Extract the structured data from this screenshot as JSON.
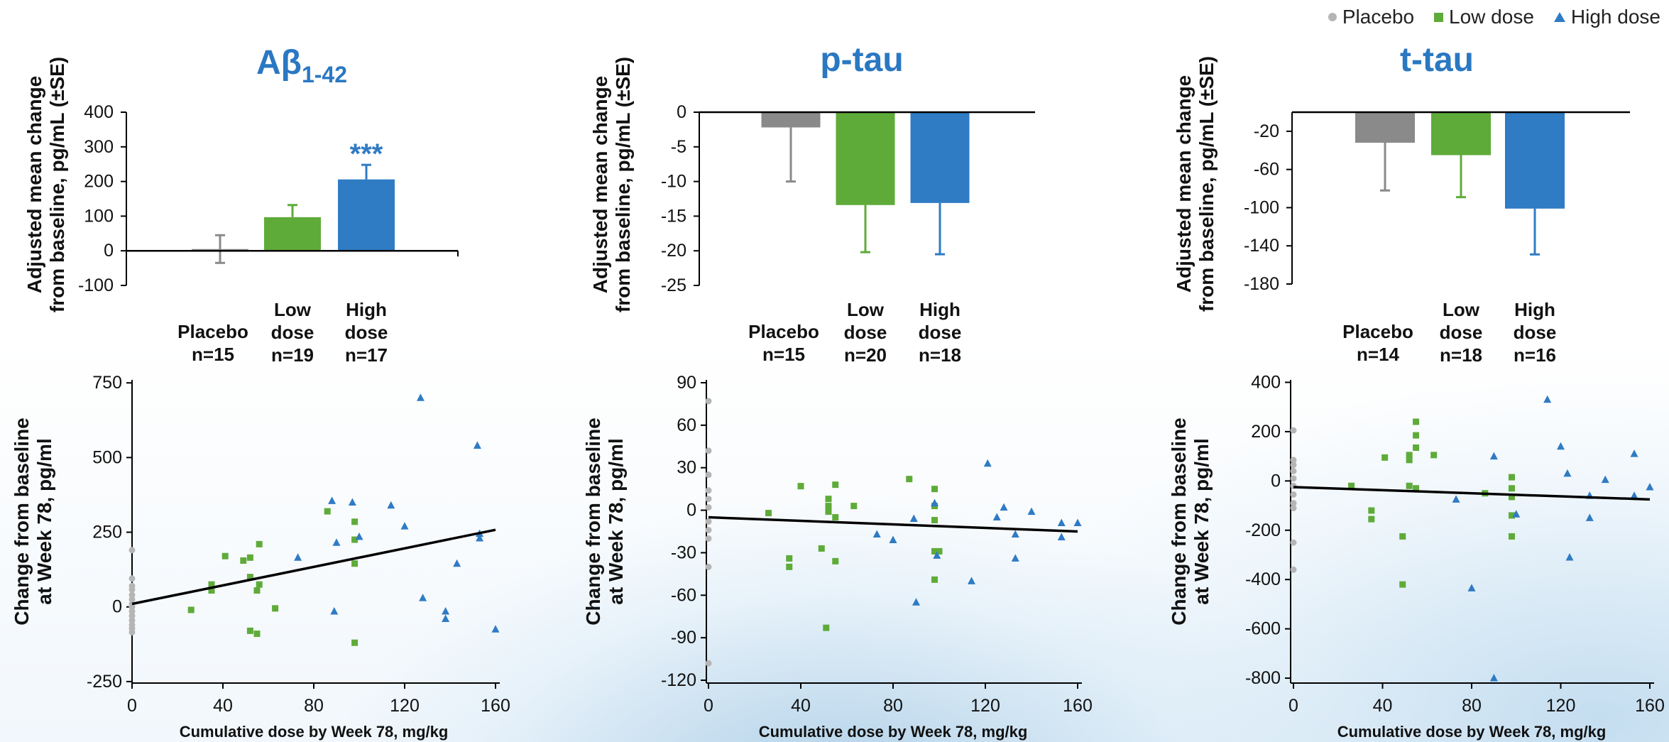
{
  "legend": {
    "items": [
      {
        "label": "Placebo",
        "color": "#b5b5b5",
        "shape": "circle"
      },
      {
        "label": "Low dose",
        "color": "#5fab3a",
        "shape": "square"
      },
      {
        "label": "High dose",
        "color": "#2f7bc4",
        "shape": "triangle"
      }
    ]
  },
  "colors": {
    "placebo": "#8a8a8a",
    "placebo_point": "#b5b5b5",
    "low": "#5fab3a",
    "high": "#2f7bc4",
    "title": "#2a78c2"
  },
  "chart_data": [
    {
      "id": "abeta-bar",
      "type": "bar",
      "title": "Aβ",
      "title_subscript": "1-42",
      "ylabel_lines": [
        "Adjusted mean change",
        "from baseline, pg/mL (±SE)"
      ],
      "categories": [
        [
          "Placebo",
          "n=15"
        ],
        [
          "Low",
          "dose",
          "n=19"
        ],
        [
          "High",
          "dose",
          "n=17"
        ]
      ],
      "values": [
        5,
        97,
        206
      ],
      "errors": [
        40,
        35,
        42
      ],
      "annotation": {
        "category": 2,
        "text": "***"
      },
      "ylim": [
        -100,
        400
      ],
      "yticks": [
        -100,
        0,
        100,
        200,
        300,
        400
      ],
      "ytick_labels": [
        "-100",
        "0",
        "100",
        "200",
        "300",
        "400"
      ]
    },
    {
      "id": "ptau-bar",
      "type": "bar",
      "title": "p-tau",
      "title_subscript": "",
      "ylabel_lines": [
        "Adjusted mean change",
        "from baseline, pg/mL (±SE)"
      ],
      "categories": [
        [
          "Placebo",
          "n=15"
        ],
        [
          "Low",
          "dose",
          "n=20"
        ],
        [
          "High",
          "dose",
          "n=18"
        ]
      ],
      "values": [
        -2.2,
        -13.4,
        -13.1
      ],
      "errors": [
        7.8,
        6.8,
        7.4
      ],
      "ylim": [
        -25,
        0
      ],
      "yticks": [
        -25,
        -20,
        -15,
        -10,
        -5,
        0
      ],
      "ytick_labels": [
        "-25",
        "-20",
        "-15",
        "-10",
        "-5",
        "0"
      ]
    },
    {
      "id": "ttau-bar",
      "type": "bar",
      "title": "t-tau",
      "title_subscript": "",
      "ylabel_lines": [
        "Adjusted mean change",
        "from baseline, pg/mL (±SE)"
      ],
      "categories": [
        [
          "Placebo",
          "n=14"
        ],
        [
          "Low",
          "dose",
          "n=18"
        ],
        [
          "High",
          "dose",
          "n=16"
        ]
      ],
      "values": [
        -32,
        -45,
        -101
      ],
      "errors": [
        50,
        44,
        48
      ],
      "ylim": [
        -180,
        0
      ],
      "yticks": [
        -180,
        -140,
        -100,
        -60,
        -20
      ],
      "ytick_labels": [
        "-180",
        "-140",
        "-100",
        "-60",
        "-20"
      ]
    },
    {
      "id": "abeta-scatter",
      "type": "scatter",
      "ylabel_lines": [
        "Change from baseline",
        "at Week 78, pg/ml"
      ],
      "xlabel": "Cumulative dose by Week 78, mg/kg",
      "xlim": [
        -2,
        162
      ],
      "ylim": [
        -255,
        760
      ],
      "xticks": [
        0,
        40,
        80,
        120,
        160
      ],
      "yticks": [
        -250,
        0,
        250,
        500,
        750
      ],
      "ytick_labels": [
        "-250",
        "0",
        "250",
        "500",
        "750"
      ],
      "trendline": [
        [
          0,
          10
        ],
        [
          160,
          258
        ]
      ],
      "series": [
        {
          "name": "Placebo",
          "points": [
            [
              0,
              190
            ],
            [
              0,
              95
            ],
            [
              0,
              70
            ],
            [
              0,
              58
            ],
            [
              0,
              40
            ],
            [
              0,
              25
            ],
            [
              0,
              10
            ],
            [
              0,
              0
            ],
            [
              0,
              -15
            ],
            [
              0,
              -30
            ],
            [
              0,
              -45
            ],
            [
              0,
              -60
            ],
            [
              0,
              -72
            ],
            [
              0,
              -85
            ]
          ]
        },
        {
          "name": "Low dose",
          "points": [
            [
              26,
              -10
            ],
            [
              35,
              75
            ],
            [
              35,
              55
            ],
            [
              41,
              170
            ],
            [
              49,
              155
            ],
            [
              52,
              100
            ],
            [
              52,
              165
            ],
            [
              55,
              55
            ],
            [
              56,
              210
            ],
            [
              56,
              75
            ],
            [
              52,
              -80
            ],
            [
              55,
              -90
            ],
            [
              63,
              -5
            ],
            [
              86,
              320
            ],
            [
              98,
              285
            ],
            [
              98,
              225
            ],
            [
              98,
              145
            ],
            [
              98,
              -120
            ]
          ]
        },
        {
          "name": "High dose",
          "points": [
            [
              73,
              165
            ],
            [
              88,
              355
            ],
            [
              90,
              215
            ],
            [
              89,
              -15
            ],
            [
              97,
              350
            ],
            [
              100,
              235
            ],
            [
              114,
              340
            ],
            [
              120,
              270
            ],
            [
              127,
              700
            ],
            [
              128,
              30
            ],
            [
              138,
              -15
            ],
            [
              138,
              -40
            ],
            [
              143,
              145
            ],
            [
              152,
              540
            ],
            [
              153,
              245
            ],
            [
              153,
              230
            ],
            [
              160,
              -75
            ]
          ]
        }
      ]
    },
    {
      "id": "ptau-scatter",
      "type": "scatter",
      "ylabel_lines": [
        "Change from baseline",
        "at Week 78, pg/ml"
      ],
      "xlabel": "Cumulative dose by Week 78, mg/kg",
      "xlim": [
        -2,
        162
      ],
      "ylim": [
        -122,
        92
      ],
      "xticks": [
        0,
        40,
        80,
        120,
        160
      ],
      "yticks": [
        -120,
        -90,
        -60,
        -30,
        0,
        30,
        60,
        90
      ],
      "ytick_labels": [
        "-120",
        "-90",
        "-60",
        "-30",
        "0",
        "30",
        "60",
        "90"
      ],
      "trendline": [
        [
          0,
          -5
        ],
        [
          160,
          -15
        ]
      ],
      "series": [
        {
          "name": "Placebo",
          "points": [
            [
              0,
              77
            ],
            [
              0,
              42
            ],
            [
              0,
              25
            ],
            [
              0,
              14
            ],
            [
              0,
              8
            ],
            [
              0,
              2
            ],
            [
              0,
              -8
            ],
            [
              0,
              -14
            ],
            [
              0,
              -20
            ],
            [
              0,
              -40
            ],
            [
              0,
              -108
            ]
          ]
        },
        {
          "name": "Low dose",
          "points": [
            [
              26,
              -2
            ],
            [
              35,
              -34
            ],
            [
              35,
              -40
            ],
            [
              40,
              17
            ],
            [
              49,
              -27
            ],
            [
              51,
              -83
            ],
            [
              52,
              8
            ],
            [
              52,
              3
            ],
            [
              52,
              -1
            ],
            [
              55,
              18
            ],
            [
              55,
              -5
            ],
            [
              55,
              -36
            ],
            [
              63,
              3
            ],
            [
              87,
              22
            ],
            [
              98,
              15
            ],
            [
              98,
              3
            ],
            [
              98,
              -7
            ],
            [
              98,
              -29
            ],
            [
              98,
              -49
            ],
            [
              100,
              -29
            ]
          ]
        },
        {
          "name": "High dose",
          "points": [
            [
              73,
              -17
            ],
            [
              80,
              -21
            ],
            [
              89,
              -6
            ],
            [
              90,
              -65
            ],
            [
              98,
              5
            ],
            [
              99,
              -32
            ],
            [
              114,
              -50
            ],
            [
              121,
              33
            ],
            [
              125,
              -5
            ],
            [
              128,
              2
            ],
            [
              133,
              -34
            ],
            [
              133,
              -17
            ],
            [
              140,
              -1
            ],
            [
              153,
              -9
            ],
            [
              153,
              -19
            ],
            [
              160,
              -9
            ]
          ]
        }
      ]
    },
    {
      "id": "ttau-scatter",
      "type": "scatter",
      "ylabel_lines": [
        "Change from baseline",
        "at Week 78, pg/ml"
      ],
      "xlabel": "Cumulative dose by Week 78, mg/kg",
      "xlim": [
        -2,
        162
      ],
      "ylim": [
        -820,
        410
      ],
      "xticks": [
        0,
        40,
        80,
        120,
        160
      ],
      "yticks": [
        -800,
        -600,
        -400,
        -200,
        0,
        200,
        400
      ],
      "ytick_labels": [
        "-800",
        "-600",
        "-400",
        "-200",
        "0",
        "200",
        "400"
      ],
      "trendline": [
        [
          0,
          -25
        ],
        [
          160,
          -75
        ]
      ],
      "series": [
        {
          "name": "Placebo",
          "points": [
            [
              0,
              205
            ],
            [
              0,
              85
            ],
            [
              0,
              65
            ],
            [
              0,
              40
            ],
            [
              0,
              10
            ],
            [
              0,
              -20
            ],
            [
              0,
              -55
            ],
            [
              0,
              -90
            ],
            [
              0,
              -110
            ],
            [
              0,
              -250
            ],
            [
              0,
              -360
            ]
          ]
        },
        {
          "name": "Low dose",
          "points": [
            [
              26,
              -20
            ],
            [
              35,
              -120
            ],
            [
              35,
              -155
            ],
            [
              41,
              95
            ],
            [
              49,
              -225
            ],
            [
              49,
              -420
            ],
            [
              52,
              105
            ],
            [
              52,
              85
            ],
            [
              52,
              -20
            ],
            [
              55,
              240
            ],
            [
              55,
              185
            ],
            [
              55,
              135
            ],
            [
              55,
              -30
            ],
            [
              63,
              105
            ],
            [
              86,
              -50
            ],
            [
              98,
              15
            ],
            [
              98,
              -30
            ],
            [
              98,
              -65
            ],
            [
              98,
              -140
            ],
            [
              98,
              -225
            ]
          ]
        },
        {
          "name": "High dose",
          "points": [
            [
              73,
              -75
            ],
            [
              80,
              -435
            ],
            [
              90,
              100
            ],
            [
              90,
              -800
            ],
            [
              100,
              -135
            ],
            [
              114,
              330
            ],
            [
              120,
              140
            ],
            [
              123,
              30
            ],
            [
              124,
              -310
            ],
            [
              133,
              -60
            ],
            [
              133,
              -150
            ],
            [
              140,
              5
            ],
            [
              153,
              110
            ],
            [
              153,
              -60
            ],
            [
              160,
              -25
            ]
          ]
        }
      ]
    }
  ]
}
